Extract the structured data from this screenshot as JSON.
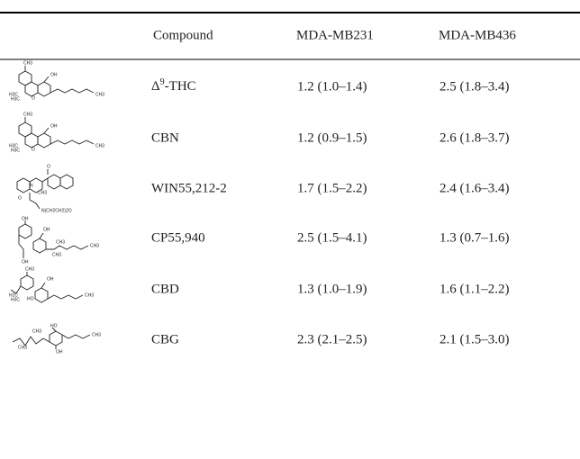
{
  "table": {
    "header": [
      "Compound",
      "MDA-MB231",
      "MDA-MB436"
    ],
    "rows": [
      {
        "compound": [
          "Δ",
          "9",
          "-THC"
        ],
        "values": [
          "1.2 (1.0–1.4)",
          "2.5 (1.8–3.4)"
        ],
        "structure_labels": [
          "CH3",
          "OH",
          "H3C",
          "H3C",
          "O",
          "CH3"
        ]
      },
      {
        "compound": "CBN",
        "values": [
          "1.2 (0.9–1.5)",
          "2.6 (1.8–3.7)"
        ],
        "structure_labels": [
          "CH3",
          "OH",
          "H3C",
          "H3C",
          "O",
          "CH3"
        ]
      },
      {
        "compound": "WIN55,212-2",
        "values": [
          "1.7 (1.5–2.2)",
          "2.4 (1.6–3.4)"
        ],
        "structure_labels": [
          "O",
          "N",
          "CH3",
          "O",
          "N(CH2CH2)2O"
        ]
      },
      {
        "compound": "CP55,940",
        "values": [
          "2.5 (1.5–4.1)",
          "1.3 (0.7–1.6)"
        ],
        "structure_labels": [
          "OH",
          "OH",
          "OH",
          "CH3",
          "CH3",
          "CH3"
        ]
      },
      {
        "compound": "CBD",
        "values": [
          "1.3 (1.0–1.9)",
          "1.6 (1.1–2.2)"
        ],
        "structure_labels": [
          "CH3",
          "OH",
          "H2C",
          "H3C",
          "HO",
          "CH3"
        ]
      },
      {
        "compound": "CBG",
        "values": [
          "2.3 (2.1–2.5)",
          "2.1 (1.5–3.0)"
        ],
        "structure_labels": [
          "CH3",
          "HO",
          "CH3",
          "OH",
          "CH3"
        ]
      }
    ]
  }
}
